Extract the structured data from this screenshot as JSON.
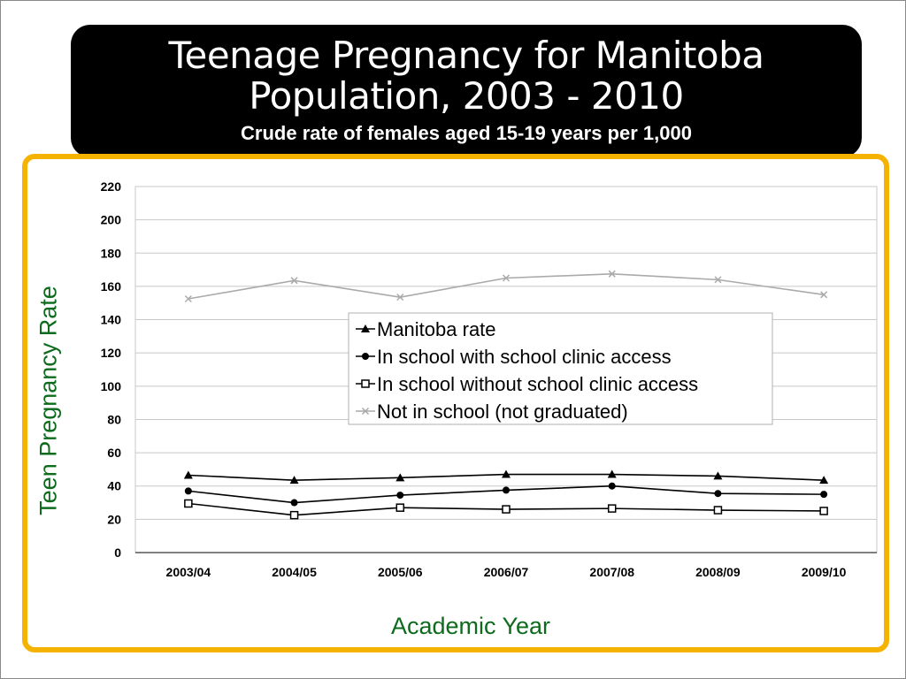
{
  "slide": {
    "title_line1": "Teenage Pregnancy for Manitoba",
    "title_line2": "Population, 2003 - 2010",
    "subtitle": "Crude rate of females aged 15-19 years per 1,000"
  },
  "chart_data": {
    "type": "line",
    "title": "Teenage Pregnancy for Manitoba Population, 2003 - 2010",
    "subtitle": "Crude rate of females aged 15-19 years per 1,000",
    "xlabel": "Academic Year",
    "ylabel": "Teen Pregnancy Rate",
    "categories": [
      "2003/04",
      "2004/05",
      "2005/06",
      "2006/07",
      "2007/08",
      "2008/09",
      "2009/10"
    ],
    "ylim": [
      0,
      220
    ],
    "yticks": [
      0,
      20,
      40,
      60,
      80,
      100,
      120,
      140,
      160,
      180,
      200,
      220
    ],
    "grid": true,
    "legend_position": "center",
    "series": [
      {
        "name": "Manitoba rate",
        "marker": "triangle",
        "color": "#000000",
        "values": [
          46.5,
          43.5,
          45,
          47,
          47,
          46,
          43.5
        ]
      },
      {
        "name": "In school with school clinic access",
        "marker": "circle",
        "color": "#000000",
        "values": [
          37,
          30,
          34.5,
          37.5,
          40,
          35.5,
          35
        ]
      },
      {
        "name": "In school without school clinic access",
        "marker": "square",
        "color": "#000000",
        "values": [
          29.5,
          22.5,
          27,
          26,
          26.5,
          25.5,
          25
        ]
      },
      {
        "name": "Not in school (not graduated)",
        "marker": "x",
        "color": "#aaaaaa",
        "values": [
          152.5,
          163.5,
          153.5,
          165,
          167.5,
          164,
          155
        ]
      }
    ]
  }
}
